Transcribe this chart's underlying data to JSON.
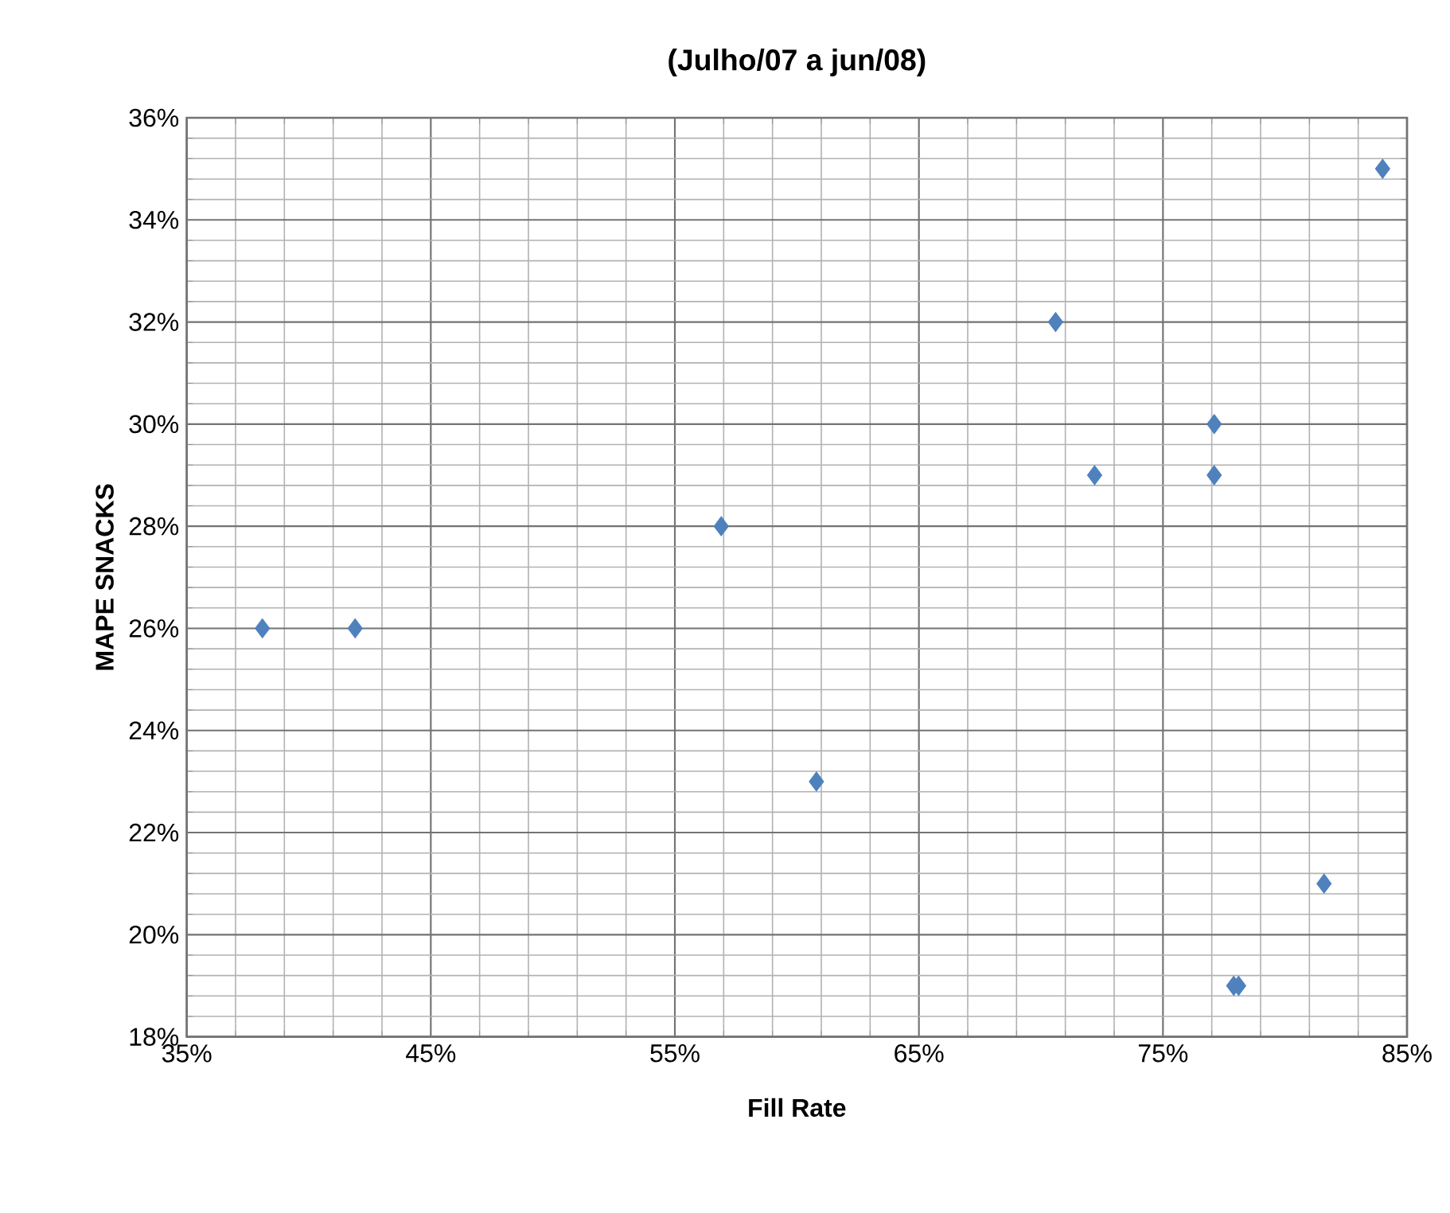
{
  "chart_data": {
    "type": "scatter",
    "title": "(Julho/07 a jun/08)",
    "xlabel": "Fill Rate",
    "ylabel": "MAPE SNACKS",
    "x": [
      38.1,
      41.9,
      56.9,
      60.8,
      70.6,
      72.2,
      77.1,
      77.1,
      77.9,
      78.1,
      81.6,
      84.0
    ],
    "series": [
      {
        "color": "#4f81bd",
        "values": [
          26,
          26,
          28,
          23,
          32,
          29,
          30,
          29,
          19,
          19,
          21,
          35
        ]
      }
    ],
    "xlim": [
      35,
      85
    ],
    "ylim": [
      18,
      36
    ],
    "xticks": [
      {
        "value": 35,
        "label": "35%"
      },
      {
        "value": 45,
        "label": "45%"
      },
      {
        "value": 55,
        "label": "55%"
      },
      {
        "value": 65,
        "label": "65%"
      },
      {
        "value": 75,
        "label": "75%"
      },
      {
        "value": 85,
        "label": "85%"
      }
    ],
    "yticks": [
      {
        "value": 18,
        "label": "18%"
      },
      {
        "value": 20,
        "label": "20%"
      },
      {
        "value": 22,
        "label": "22%"
      },
      {
        "value": 24,
        "label": "24%"
      },
      {
        "value": 26,
        "label": "26%"
      },
      {
        "value": 28,
        "label": "28%"
      },
      {
        "value": 30,
        "label": "30%"
      },
      {
        "value": 32,
        "label": "32%"
      },
      {
        "value": 34,
        "label": "34%"
      },
      {
        "value": 36,
        "label": "36%"
      }
    ],
    "grid": true,
    "marker": "diamond"
  }
}
